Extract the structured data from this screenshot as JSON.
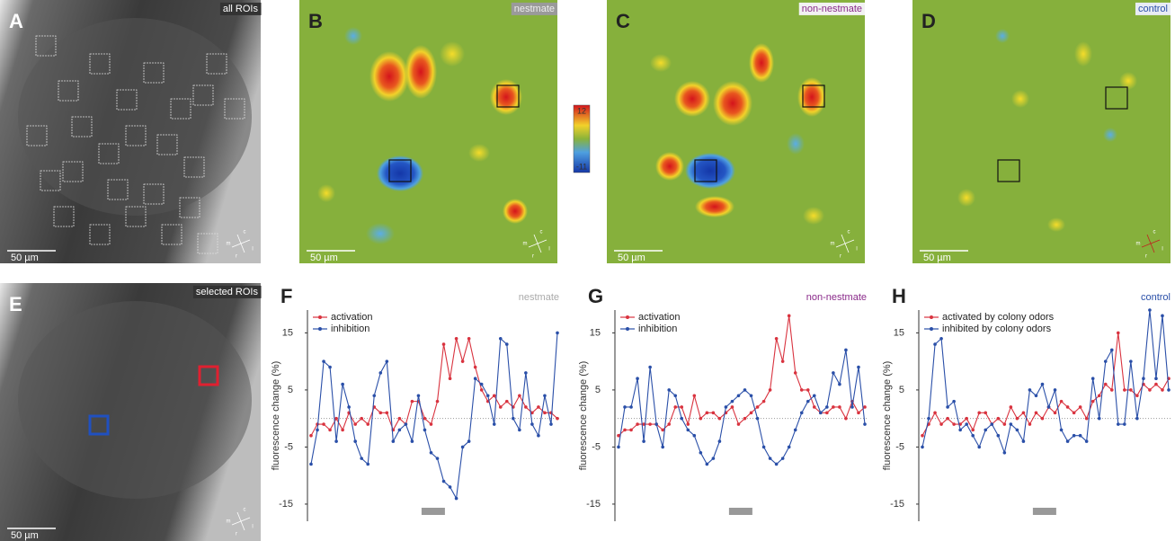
{
  "panels": [
    {
      "letter": "A",
      "tag": "all ROIs",
      "scale_bar": "50 µm"
    },
    {
      "letter": "B",
      "tag": "nestmate",
      "scale_bar": "50 µm"
    },
    {
      "letter": "C",
      "tag": "non-nestmate",
      "scale_bar": "50 µm"
    },
    {
      "letter": "D",
      "tag": "control",
      "scale_bar": "50 µm"
    },
    {
      "letter": "E",
      "tag": "selected ROIs",
      "scale_bar": "50 µm"
    }
  ],
  "color_bar": {
    "max": 12,
    "min": -11
  },
  "compass_labels": [
    "m",
    "c",
    "l",
    "r"
  ],
  "chart_data": [
    {
      "type": "line",
      "letter": "F",
      "tag": "nestmate",
      "ylabel": "fluorescence change (%)",
      "ylim": [
        -18,
        19
      ],
      "yticks": [
        -15,
        -5,
        5,
        15
      ],
      "series": [
        {
          "name": "activation",
          "color": "#d9333f",
          "values": [
            -3,
            -1,
            -1,
            -2,
            0,
            -2,
            1,
            -1,
            0,
            -1,
            2,
            1,
            1,
            -2,
            0,
            -1,
            3,
            3,
            0,
            -1,
            3,
            13,
            7,
            14,
            10,
            14,
            9,
            5,
            3,
            4,
            2,
            3,
            2,
            4,
            2,
            1,
            2,
            1,
            1,
            0
          ]
        },
        {
          "name": "inhibition",
          "color": "#2a4fa8",
          "values": [
            -8,
            -2,
            10,
            9,
            -4,
            6,
            2,
            -4,
            -7,
            -8,
            4,
            8,
            10,
            -4,
            -2,
            -1,
            -4,
            4,
            -2,
            -6,
            -7,
            -11,
            -12,
            -14,
            -5,
            -4,
            7,
            6,
            4,
            -1,
            14,
            13,
            0,
            -2,
            8,
            -1,
            -3,
            4,
            -1,
            15
          ]
        }
      ]
    },
    {
      "type": "line",
      "letter": "G",
      "tag": "non-nestmate",
      "ylabel": "fluorescence change (%)",
      "ylim": [
        -18,
        19
      ],
      "yticks": [
        -15,
        -5,
        5,
        15
      ],
      "series": [
        {
          "name": "activation",
          "color": "#d9333f",
          "values": [
            -3,
            -2,
            -2,
            -1,
            -1,
            -1,
            -1,
            -2,
            -1,
            2,
            2,
            -1,
            4,
            0,
            1,
            1,
            0,
            1,
            2,
            -1,
            0,
            1,
            2,
            3,
            5,
            14,
            10,
            18,
            8,
            5,
            5,
            2,
            1,
            1,
            2,
            2,
            0,
            3,
            1,
            2
          ]
        },
        {
          "name": "inhibition",
          "color": "#2a4fa8",
          "values": [
            -5,
            2,
            2,
            7,
            -4,
            9,
            -1,
            -5,
            5,
            4,
            0,
            -2,
            -3,
            -6,
            -8,
            -7,
            -4,
            2,
            3,
            4,
            5,
            4,
            0,
            -5,
            -7,
            -8,
            -7,
            -5,
            -2,
            1,
            3,
            4,
            1,
            2,
            8,
            6,
            12,
            2,
            9,
            -1
          ]
        }
      ]
    },
    {
      "type": "line",
      "letter": "H",
      "tag": "control",
      "ylabel": "fluorescence change (%)",
      "ylim": [
        -18,
        19
      ],
      "yticks": [
        -15,
        -5,
        5,
        15
      ],
      "series": [
        {
          "name": "activated by colony odors",
          "color": "#d9333f",
          "values": [
            -3,
            -1,
            1,
            -1,
            0,
            -1,
            -1,
            0,
            -2,
            1,
            1,
            -1,
            0,
            -1,
            2,
            0,
            1,
            -1,
            1,
            0,
            2,
            1,
            3,
            2,
            1,
            2,
            0,
            3,
            4,
            6,
            5,
            15,
            5,
            5,
            4,
            6,
            5,
            6,
            5,
            7
          ]
        },
        {
          "name": "inhibited by colony odors",
          "color": "#2a4fa8",
          "values": [
            -5,
            0,
            13,
            14,
            2,
            3,
            -2,
            -1,
            -3,
            -5,
            -2,
            -1,
            -3,
            -6,
            -1,
            -2,
            -4,
            5,
            4,
            6,
            2,
            5,
            -2,
            -4,
            -3,
            -3,
            -4,
            7,
            0,
            10,
            12,
            -1,
            -1,
            10,
            0,
            7,
            19,
            7,
            18,
            5
          ]
        }
      ]
    }
  ]
}
